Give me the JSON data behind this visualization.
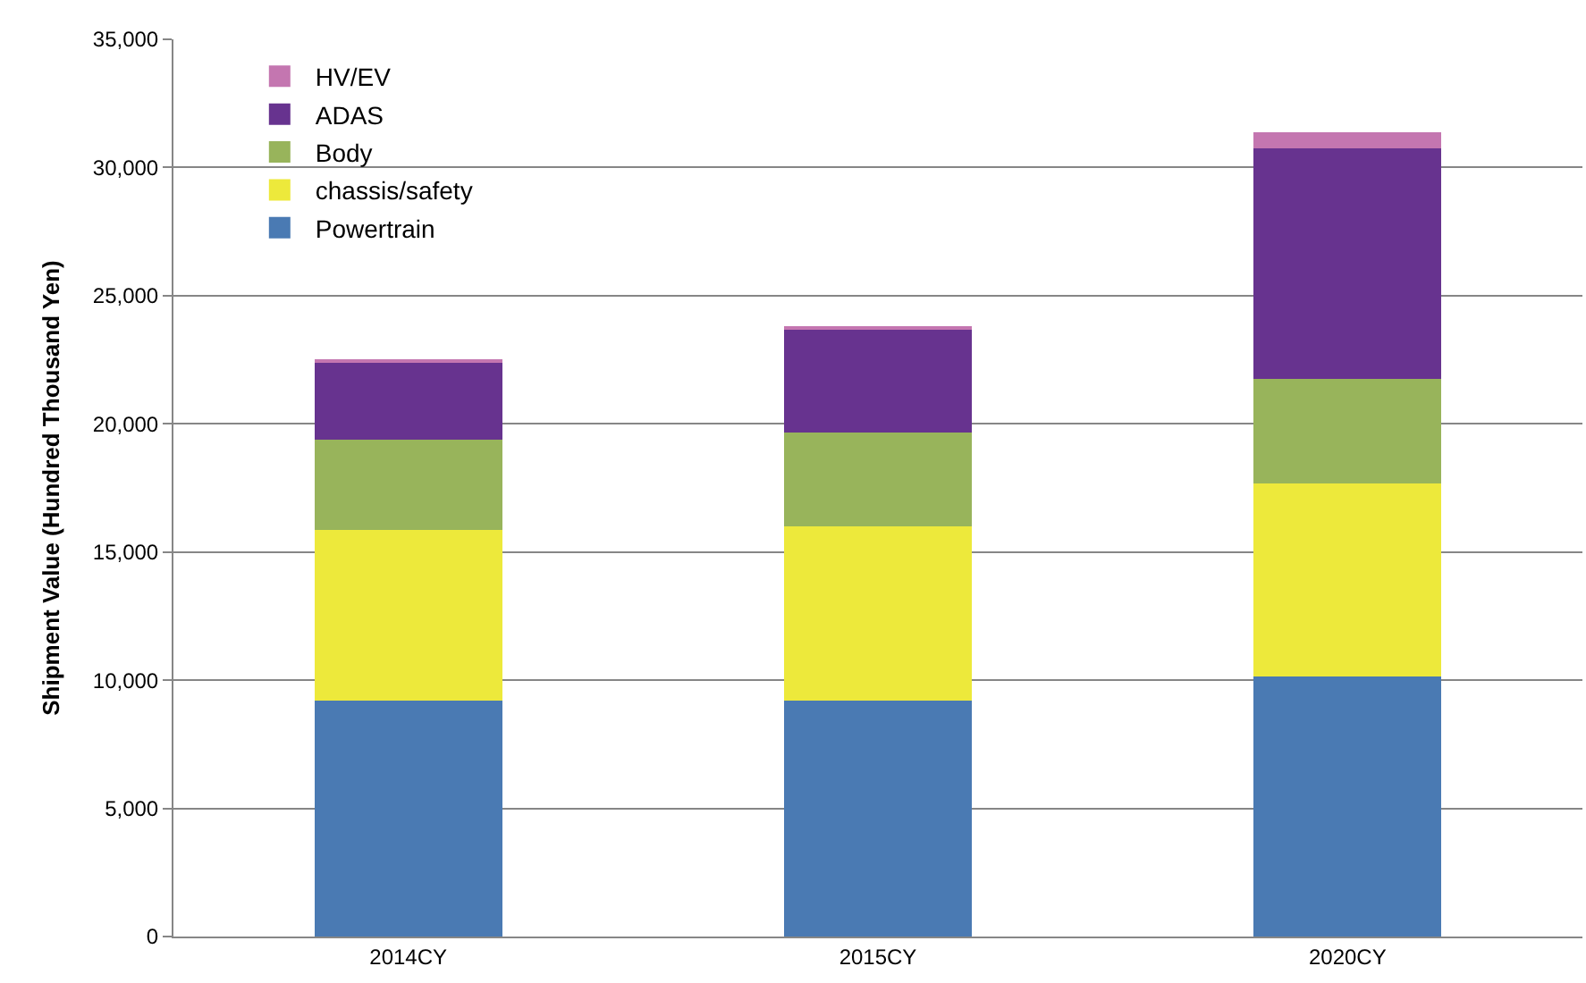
{
  "chart_data": {
    "type": "bar",
    "stacked": true,
    "ylabel": "Shipment Value (Hundred Thousand Yen)",
    "categories": [
      "2014CY",
      "2015CY",
      "2020CY"
    ],
    "series": [
      {
        "name": "Powertrain",
        "color": "#4a7ab3",
        "values": [
          9190,
          9190,
          10160
        ]
      },
      {
        "name": "chassis/safety",
        "color": "#ede93b",
        "values": [
          6660,
          6800,
          7520
        ]
      },
      {
        "name": "Body",
        "color": "#98b45b",
        "values": [
          3550,
          3680,
          4060
        ]
      },
      {
        "name": "ADAS",
        "color": "#67338f",
        "values": [
          3030,
          4010,
          9000
        ]
      },
      {
        "name": "HV/EV",
        "color": "#c476b0",
        "values": [
          40,
          140,
          650
        ]
      }
    ],
    "ylim": [
      0,
      35000
    ],
    "yticks": [
      {
        "value": 0,
        "label": "0"
      },
      {
        "value": 5000,
        "label": "5,000"
      },
      {
        "value": 10000,
        "label": "10,000"
      },
      {
        "value": 15000,
        "label": "15,000"
      },
      {
        "value": 20000,
        "label": "20,000"
      },
      {
        "value": 25000,
        "label": "25,000"
      },
      {
        "value": 30000,
        "label": "30,000"
      },
      {
        "value": 35000,
        "label": "35,000"
      }
    ],
    "grid": "y",
    "legend": "top left"
  }
}
